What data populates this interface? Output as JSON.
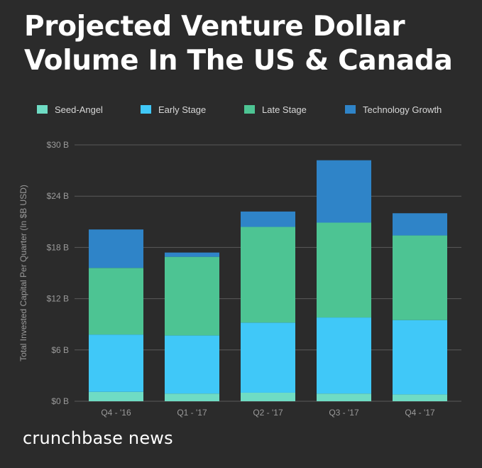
{
  "title": "Projected Venture Dollar Volume In The US & Canada",
  "brand": "crunchbase news",
  "colors": {
    "background": "#2b2b2b",
    "grid": "#5a5a5a",
    "axis_text": "#9a9a9a"
  },
  "chart_data": {
    "type": "bar",
    "stacked": true,
    "title": "Projected Venture Dollar Volume In The US & Canada",
    "xlabel": "",
    "ylabel": "Total Invested Capital Per Quarter (In $B USD)",
    "categories": [
      "Q4 - '16",
      "Q1 - '17",
      "Q2 - '17",
      "Q3 - '17",
      "Q4 - '17"
    ],
    "ylim": [
      0,
      30
    ],
    "yticks": [
      0,
      6,
      12,
      18,
      24,
      30
    ],
    "ytick_labels": [
      "$0 B",
      "$6 B",
      "$12 B",
      "$18 B",
      "$24 B",
      "$30 B"
    ],
    "grid": true,
    "legend_position": "top",
    "series": [
      {
        "name": "Seed-Angel",
        "color": "#6fdcc4",
        "values": [
          1.1,
          0.9,
          1.0,
          0.9,
          0.8
        ]
      },
      {
        "name": "Early Stage",
        "color": "#40c8f8",
        "values": [
          6.7,
          6.8,
          8.2,
          8.9,
          8.7
        ]
      },
      {
        "name": "Late Stage",
        "color": "#4dc493",
        "values": [
          7.8,
          9.2,
          11.2,
          11.1,
          9.9
        ]
      },
      {
        "name": "Technology Growth",
        "color": "#2f84c8",
        "values": [
          4.5,
          0.5,
          1.8,
          7.3,
          2.6
        ]
      }
    ]
  }
}
